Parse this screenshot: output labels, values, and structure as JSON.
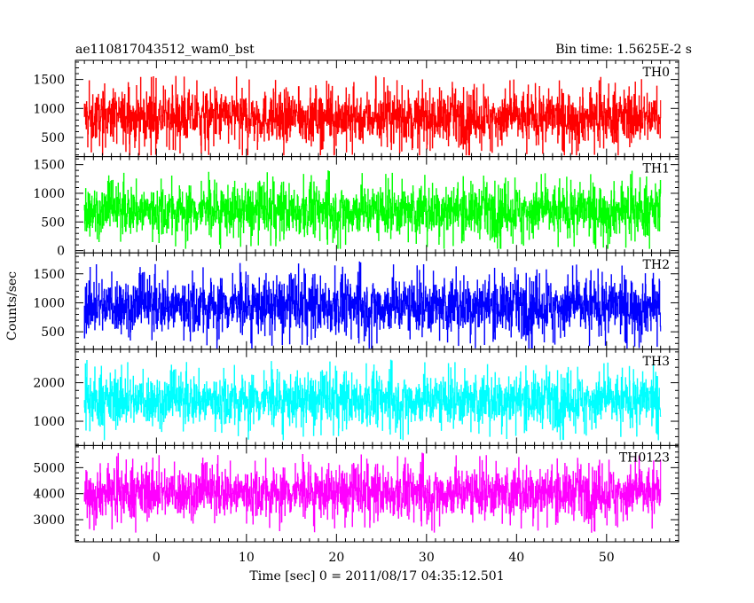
{
  "chart_data": {
    "type": "line",
    "title_left": "ae110817043512_wam0_bst",
    "title_right": "Bin time: 1.5625E-2 s",
    "xlabel": "Time [sec] 0 = 2011/08/17 04:35:12.501",
    "ylabel": "Counts/sec",
    "xlim": [
      -9,
      58
    ],
    "data_x_range": [
      -8,
      56
    ],
    "x_ticks": [
      0,
      10,
      20,
      30,
      40,
      50
    ],
    "x_tick_labels": [
      "0",
      "10",
      "20",
      "30",
      "40",
      "50"
    ],
    "panels": [
      {
        "name": "TH0",
        "color": "#ff0000",
        "ylim": [
          170,
          1830
        ],
        "yticks": [
          500,
          1000,
          1500
        ],
        "ytick_labels": [
          "500",
          "1000",
          "1500"
        ],
        "mean": 850,
        "spread": 220,
        "min": 200,
        "max": 1830
      },
      {
        "name": "TH1",
        "color": "#00ff00",
        "ylim": [
          -40,
          1640
        ],
        "yticks": [
          0,
          500,
          1000,
          1500
        ],
        "ytick_labels": [
          "0",
          "500",
          "1000",
          "1500"
        ],
        "mean": 700,
        "spread": 220,
        "min": 40,
        "max": 1640
      },
      {
        "name": "TH2",
        "color": "#0000ff",
        "ylim": [
          200,
          1860
        ],
        "yticks": [
          500,
          1000,
          1500
        ],
        "ytick_labels": [
          "500",
          "1000",
          "1500"
        ],
        "mean": 950,
        "spread": 240,
        "min": 220,
        "max": 1860
      },
      {
        "name": "TH3",
        "color": "#00ffff",
        "ylim": [
          370,
          2870
        ],
        "yticks": [
          1000,
          2000
        ],
        "ytick_labels": [
          "1000",
          "2000"
        ],
        "mean": 1550,
        "spread": 330,
        "min": 520,
        "max": 2870
      },
      {
        "name": "TH0123",
        "color": "#ff00ff",
        "ylim": [
          2150,
          5850
        ],
        "yticks": [
          3000,
          4000,
          5000
        ],
        "ytick_labels": [
          "3000",
          "4000",
          "5000"
        ],
        "mean": 4050,
        "spread": 480,
        "min": 2500,
        "max": 5850
      }
    ]
  }
}
